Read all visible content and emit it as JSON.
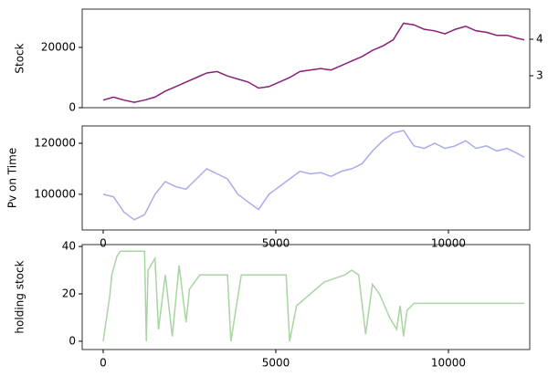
{
  "chart_data": [
    {
      "type": "line",
      "ylabel": "Stock",
      "ylim": [
        0,
        32700
      ],
      "yticks": [
        0,
        20000
      ],
      "xlim": [
        -608,
        12355
      ],
      "y2lim": [
        2.125,
        4.825
      ],
      "y2ticks": [
        3,
        4
      ],
      "x": [
        0,
        300,
        600,
        900,
        1200,
        1500,
        1800,
        2100,
        2400,
        2700,
        3000,
        3300,
        3600,
        3900,
        4200,
        4500,
        4800,
        5100,
        5400,
        5700,
        6000,
        6300,
        6600,
        6900,
        7200,
        7500,
        7800,
        8100,
        8400,
        8700,
        9000,
        9300,
        9600,
        9900,
        10200,
        10500,
        10800,
        11100,
        11400,
        11700,
        12000,
        12200
      ],
      "series": [
        {
          "color": "#8a1f7a",
          "values": [
            2500,
            3500,
            2500,
            1800,
            2500,
            3500,
            5500,
            7000,
            8500,
            10000,
            11500,
            12000,
            10500,
            9500,
            8500,
            6500,
            7000,
            8500,
            10000,
            12000,
            12500,
            13000,
            12500,
            14000,
            15500,
            17000,
            19000,
            20500,
            22500,
            28000,
            27500,
            26000,
            25500,
            24500,
            26000,
            27000,
            25500,
            25000,
            24000,
            24000,
            23000,
            22500
          ]
        }
      ]
    },
    {
      "type": "line",
      "ylabel": "Pv on Time",
      "ylim": [
        86000,
        126800
      ],
      "yticks": [
        100000,
        120000
      ],
      "xlim": [
        -608,
        12355
      ],
      "xticks": [
        0,
        5000,
        10000
      ],
      "x": [
        0,
        300,
        600,
        900,
        1200,
        1500,
        1800,
        2100,
        2400,
        2700,
        3000,
        3300,
        3600,
        3900,
        4200,
        4500,
        4800,
        5100,
        5400,
        5700,
        6000,
        6300,
        6600,
        6900,
        7200,
        7500,
        7800,
        8100,
        8400,
        8700,
        9000,
        9300,
        9600,
        9900,
        10200,
        10500,
        10800,
        11100,
        11400,
        11700,
        12000,
        12200
      ],
      "series": [
        {
          "color": "#aaaaee",
          "values": [
            100000,
            99000,
            93000,
            90000,
            92000,
            100000,
            105000,
            103000,
            102000,
            106000,
            110000,
            108000,
            106000,
            100000,
            97000,
            94000,
            100000,
            103000,
            106000,
            109000,
            108000,
            108500,
            107000,
            109000,
            110000,
            112000,
            117000,
            121000,
            124000,
            125000,
            119000,
            118000,
            120000,
            118000,
            119000,
            121000,
            118000,
            119000,
            117000,
            118000,
            116000,
            114500
          ]
        }
      ]
    },
    {
      "type": "line",
      "ylabel": "holding stock",
      "ylim": [
        -3.5,
        40.8
      ],
      "yticks": [
        0,
        20,
        40
      ],
      "xlim": [
        -608,
        12355
      ],
      "xticks": [
        0,
        5000,
        10000
      ],
      "x": [
        0,
        200,
        250,
        400,
        500,
        1200,
        1250,
        1300,
        1500,
        1600,
        1800,
        2000,
        2200,
        2400,
        2500,
        2800,
        3000,
        3600,
        3700,
        4000,
        4100,
        5300,
        5400,
        5600,
        6000,
        6400,
        7000,
        7200,
        7400,
        7600,
        7800,
        8000,
        8300,
        8500,
        8600,
        8700,
        8800,
        9000,
        12200
      ],
      "series": [
        {
          "color": "#a8d5a2",
          "values": [
            0,
            20,
            28,
            36,
            38,
            38,
            0,
            30,
            35,
            5,
            28,
            2,
            32,
            8,
            22,
            28,
            28,
            28,
            0,
            28,
            28,
            28,
            0,
            15,
            20,
            25,
            28,
            30,
            28,
            3,
            24,
            20,
            10,
            5,
            15,
            2,
            13,
            16,
            16
          ]
        }
      ]
    }
  ]
}
